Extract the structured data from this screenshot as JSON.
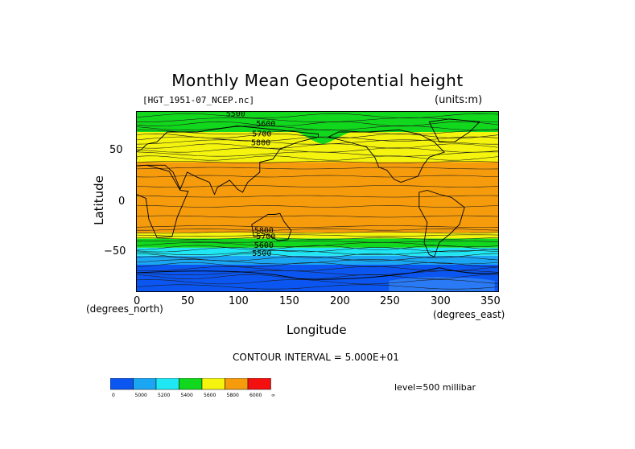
{
  "title": "Monthly Mean Geopotential height",
  "file_label": "[HGT_1951-07_NCEP.nc]",
  "units_label": "(units:m)",
  "y_axis": {
    "label": "Latitude",
    "unit": "(degrees_north)",
    "ticks": [
      "50",
      "0",
      "−50"
    ]
  },
  "x_axis": {
    "label": "Longitude",
    "unit": "(degrees_east)",
    "ticks": [
      "0",
      "50",
      "100",
      "150",
      "200",
      "250",
      "300",
      "350"
    ]
  },
  "contour_interval": "CONTOUR INTERVAL = 5.000E+01",
  "level_label": "level=500 millibar",
  "contour_labels": [
    "5500",
    "5600",
    "5700",
    "5800",
    "5800",
    "5700",
    "5600",
    "5500"
  ],
  "colors": {
    "blue": "#0b56f0",
    "lightblue": "#1ba6f4",
    "cyan": "#1fe8f4",
    "green": "#11d81c",
    "yellow": "#f4f40e",
    "orange": "#f59b0c",
    "red": "#f51010"
  },
  "colorbar": {
    "labels": [
      "0",
      "5000",
      "5200",
      "5400",
      "5600",
      "5800",
      "6000",
      "∞"
    ]
  },
  "map": {
    "projection": "equirectangular",
    "lon_range": [
      0,
      360
    ],
    "lat_range": [
      -90,
      90
    ],
    "bands_south_to_north": [
      {
        "from_lat": -90,
        "to_lat": -62,
        "color": "blue"
      },
      {
        "from_lat": -62,
        "to_lat": -53,
        "color": "lightblue"
      },
      {
        "from_lat": -53,
        "to_lat": -45,
        "color": "cyan"
      },
      {
        "from_lat": -45,
        "to_lat": -36,
        "color": "green"
      },
      {
        "from_lat": -36,
        "to_lat": -30,
        "color": "yellow"
      },
      {
        "from_lat": -30,
        "to_lat": 40,
        "color": "orange"
      },
      {
        "from_lat": 40,
        "to_lat": 70,
        "color": "yellow"
      },
      {
        "from_lat": 70,
        "to_lat": 90,
        "color": "green"
      }
    ]
  }
}
